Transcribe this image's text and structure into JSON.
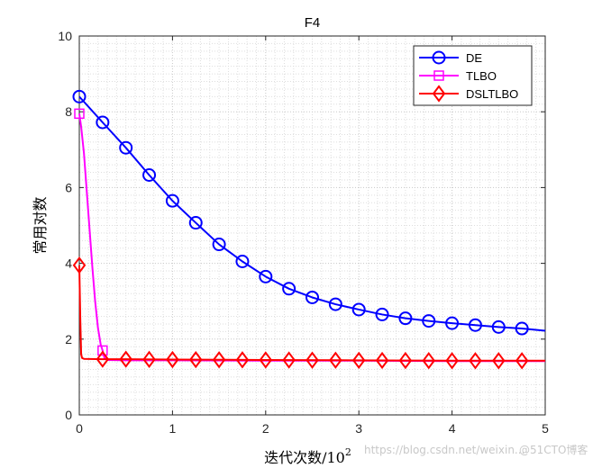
{
  "chart_data": {
    "type": "line",
    "title": "F4",
    "xlabel": "迭代次数/10",
    "xlabel_sup": "2",
    "ylabel": "常用对数",
    "xlim": [
      0,
      5
    ],
    "ylim": [
      0,
      10
    ],
    "xticks": [
      "0",
      "1",
      "2",
      "3",
      "4",
      "5"
    ],
    "yticks": [
      "0",
      "2",
      "4",
      "6",
      "8",
      "10"
    ],
    "grid": "on (major and minor, dotted)",
    "legend_location": "top-right",
    "series": [
      {
        "name": "DE",
        "color": "#0000ff",
        "marker": "circle",
        "x": [
          0,
          0.25,
          0.5,
          0.75,
          1.0,
          1.25,
          1.5,
          1.75,
          2.0,
          2.25,
          2.5,
          2.75,
          3.0,
          3.25,
          3.5,
          3.75,
          4.0,
          4.25,
          4.5,
          4.75,
          5.0
        ],
        "y": [
          8.4,
          7.72,
          7.05,
          6.33,
          5.65,
          5.07,
          4.5,
          4.05,
          3.65,
          3.33,
          3.1,
          2.92,
          2.78,
          2.65,
          2.55,
          2.48,
          2.42,
          2.37,
          2.32,
          2.28,
          2.22
        ]
      },
      {
        "name": "TLBO",
        "color": "#ff00ff",
        "marker": "square",
        "x": [
          0,
          0.02,
          0.05,
          0.08,
          0.11,
          0.14,
          0.17,
          0.2,
          0.23,
          0.25,
          0.27,
          0.3,
          0.5,
          1.0,
          2.0,
          3.0,
          4.0,
          5.0
        ],
        "y": [
          7.95,
          7.6,
          6.9,
          5.9,
          4.9,
          3.9,
          3.0,
          2.3,
          1.85,
          1.7,
          1.5,
          1.45,
          1.44,
          1.44,
          1.43,
          1.43,
          1.42,
          1.42
        ],
        "marker_x": [
          0,
          0.25
        ]
      },
      {
        "name": "DSLTLBO",
        "color": "#ff0000",
        "marker": "diamond",
        "x": [
          0,
          0.01,
          0.02,
          0.03,
          0.05,
          0.25,
          0.5,
          1.0,
          2.0,
          3.0,
          4.0,
          5.0
        ],
        "y": [
          3.95,
          2.6,
          1.6,
          1.5,
          1.48,
          1.47,
          1.47,
          1.46,
          1.45,
          1.44,
          1.43,
          1.43
        ],
        "marker_x": [
          0,
          0.25,
          0.5,
          0.75,
          1.0,
          1.25,
          1.5,
          1.75,
          2.0,
          2.25,
          2.5,
          2.75,
          3.0,
          3.25,
          3.5,
          3.75,
          4.0,
          4.25,
          4.5,
          4.75
        ]
      }
    ]
  },
  "watermark": {
    "blog": "https://blog.csdn.net/weixin...",
    "brand": "@51CTO博客"
  }
}
